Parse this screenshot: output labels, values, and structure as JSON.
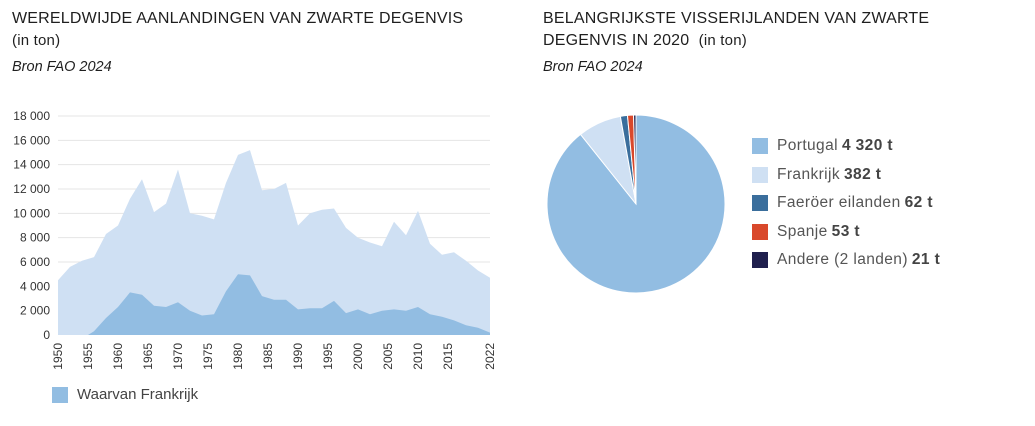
{
  "left": {
    "title": "WERELDWIJDE AANLANDINGEN VAN ZWARTE DEGENVIS",
    "unit": "(in ton)",
    "source": "Bron FAO 2024",
    "legend_label": "Waarvan Frankrijk"
  },
  "right": {
    "title_line1": "BELANGRIJKSTE VISSERIJLANDEN VAN ZWARTE",
    "title_line2": "DEGENVIS IN 2020",
    "unit": "(in ton)",
    "source": "Bron FAO 2024"
  },
  "colors": {
    "world": "#cfe0f3",
    "france": "#92bde2",
    "portugal": "#92bde2",
    "frankrijk": "#cfe0f3",
    "faeroer": "#3a6e9c",
    "spanje": "#d9482b",
    "andere": "#1f1f4d"
  },
  "chart_data": [
    {
      "type": "area",
      "title": "WERELDWIJDE AANLANDINGEN VAN ZWARTE DEGENVIS",
      "xlabel": "",
      "ylabel": "",
      "ylim": [
        0,
        18000
      ],
      "xlim": [
        1950,
        2022
      ],
      "yticks": [
        "0",
        "2 000",
        "4 000",
        "6 000",
        "8 000",
        "10 000",
        "12 000",
        "14 000",
        "16 000",
        "18 000"
      ],
      "xticks": [
        "1950",
        "1955",
        "1960",
        "1965",
        "1970",
        "1975",
        "1980",
        "1985",
        "1990",
        "1995",
        "2000",
        "2005",
        "2010",
        "2015",
        "2022"
      ],
      "grid": "horizontal",
      "legend": "bottom-left",
      "series": [
        {
          "key": "world",
          "x": [
            1950,
            1952,
            1954,
            1956,
            1958,
            1960,
            1962,
            1964,
            1966,
            1968,
            1970,
            1972,
            1974,
            1976,
            1978,
            1980,
            1982,
            1984,
            1986,
            1988,
            1990,
            1992,
            1994,
            1996,
            1998,
            2000,
            2002,
            2004,
            2006,
            2008,
            2010,
            2012,
            2014,
            2016,
            2018,
            2020,
            2022
          ],
          "values": [
            4500,
            5600,
            6100,
            6400,
            8300,
            9000,
            11200,
            12800,
            10100,
            10800,
            13600,
            10000,
            9800,
            9500,
            12500,
            14800,
            15200,
            11900,
            12000,
            12500,
            9000,
            10000,
            10300,
            10400,
            8800,
            8000,
            7600,
            7300,
            9300,
            8200,
            10200,
            7500,
            6600,
            6800,
            6100,
            5300,
            4700
          ]
        },
        {
          "key": "france",
          "name": "Waarvan Frankrijk",
          "x": [
            1950,
            1955,
            1956,
            1958,
            1960,
            1962,
            1964,
            1966,
            1968,
            1970,
            1972,
            1974,
            1976,
            1978,
            1980,
            1982,
            1984,
            1986,
            1988,
            1990,
            1992,
            1994,
            1996,
            1998,
            2000,
            2002,
            2004,
            2006,
            2008,
            2010,
            2012,
            2014,
            2016,
            2018,
            2020,
            2022
          ],
          "values": [
            0,
            0,
            300,
            1400,
            2300,
            3500,
            3300,
            2400,
            2300,
            2700,
            2000,
            1600,
            1700,
            3600,
            5000,
            4900,
            3200,
            2900,
            2900,
            2100,
            2200,
            2200,
            2800,
            1800,
            2100,
            1700,
            2000,
            2100,
            2000,
            2300,
            1700,
            1500,
            1200,
            800,
            600,
            200
          ]
        }
      ]
    },
    {
      "type": "pie",
      "title": "BELANGRIJKSTE VISSERIJLANDEN VAN ZWARTE DEGENVIS IN 2020 (in ton)",
      "legend": "right",
      "slices": [
        {
          "key": "portugal",
          "label": "Portugal",
          "value": 4320,
          "value_label": "4 320 t"
        },
        {
          "key": "frankrijk",
          "label": "Frankrijk",
          "value": 382,
          "value_label": "382 t"
        },
        {
          "key": "faeroer",
          "label": "Faeröer eilanden",
          "value": 62,
          "value_label": "62 t"
        },
        {
          "key": "spanje",
          "label": "Spanje",
          "value": 53,
          "value_label": "53 t"
        },
        {
          "key": "andere",
          "label": "Andere (2 landen)",
          "value": 21,
          "value_label": "21 t"
        }
      ]
    }
  ]
}
